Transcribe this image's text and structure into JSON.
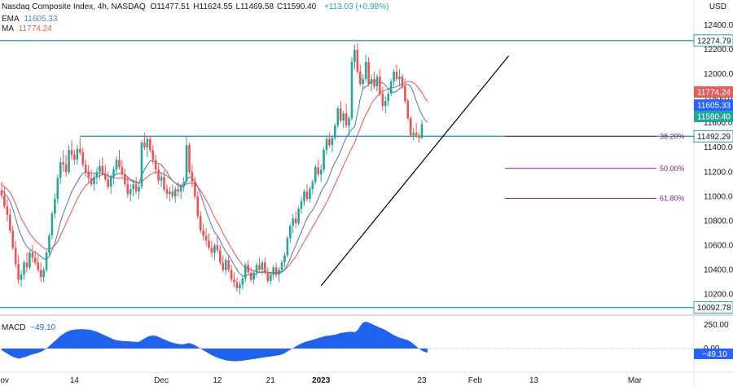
{
  "header": {
    "title": "Nasdaq Composite Index, 4h, NASDAQ",
    "ohlc": [
      {
        "k": "O",
        "v": "11477.51"
      },
      {
        "k": "H",
        "v": "11624.55"
      },
      {
        "k": "L",
        "v": "11469.58"
      },
      {
        "k": "C",
        "v": "11590.40"
      }
    ],
    "change": "+113.03 (+0.98%)",
    "ema_label": "EMA",
    "ema_value": "11605.33",
    "ma_label": "MA",
    "ma_value": "11774.24",
    "currency": "USD"
  },
  "macd": {
    "label": "MACD",
    "value": "−49.10",
    "axis_ticks": [
      "250.00",
      "0.00"
    ],
    "badge": "−49.10"
  },
  "colors": {
    "up": "#26a69a",
    "down": "#ef5350",
    "ema": "#5b7fb8",
    "ma": "#e06060",
    "level": "#2b9eaa",
    "fib": "#7b1f7b",
    "trend": "#000000",
    "macd": "#1f62f0"
  },
  "chart_data": {
    "type": "candlestick",
    "timeframe": "4h",
    "ylim": [
      10050,
      12420
    ],
    "y_ticks": [
      10200,
      10400,
      10600,
      10800,
      11000,
      11200,
      11400,
      11600,
      11800,
      12000,
      12200,
      12400
    ],
    "x_ticks": [
      {
        "i": 0,
        "label": "Nov"
      },
      {
        "i": 26,
        "label": "14"
      },
      {
        "i": 57,
        "label": "Dec"
      },
      {
        "i": 77,
        "label": "12"
      },
      {
        "i": 96,
        "label": "21"
      },
      {
        "i": 114,
        "label": "2023"
      },
      {
        "i": 150,
        "label": "23"
      },
      {
        "i": 169,
        "label": "Feb"
      },
      {
        "i": 190,
        "label": "13"
      },
      {
        "i": 226,
        "label": "Mar"
      }
    ],
    "candles": [
      [
        11050,
        11120,
        10980,
        11010
      ],
      [
        11010,
        11080,
        10900,
        10920
      ],
      [
        10920,
        10980,
        10800,
        10850
      ],
      [
        10850,
        10900,
        10700,
        10720
      ],
      [
        10720,
        10760,
        10560,
        10580
      ],
      [
        10580,
        10640,
        10420,
        10450
      ],
      [
        10450,
        10520,
        10280,
        10320
      ],
      [
        10320,
        10400,
        10260,
        10360
      ],
      [
        10360,
        10480,
        10320,
        10460
      ],
      [
        10460,
        10540,
        10380,
        10420
      ],
      [
        10420,
        10560,
        10400,
        10540
      ],
      [
        10540,
        10600,
        10460,
        10500
      ],
      [
        10500,
        10560,
        10440,
        10460
      ],
      [
        10460,
        10520,
        10380,
        10400
      ],
      [
        10400,
        10460,
        10300,
        10340
      ],
      [
        10340,
        10420,
        10300,
        10400
      ],
      [
        10400,
        10560,
        10380,
        10540
      ],
      [
        10540,
        10700,
        10520,
        10680
      ],
      [
        10680,
        10880,
        10650,
        10860
      ],
      [
        10860,
        11020,
        10820,
        10980
      ],
      [
        10980,
        11180,
        10940,
        11150
      ],
      [
        11150,
        11320,
        11100,
        11280
      ],
      [
        11280,
        11380,
        11200,
        11260
      ],
      [
        11260,
        11340,
        11160,
        11200
      ],
      [
        11200,
        11420,
        11180,
        11380
      ],
      [
        11380,
        11460,
        11300,
        11340
      ],
      [
        11340,
        11380,
        11260,
        11300
      ],
      [
        11300,
        11420,
        11260,
        11390
      ],
      [
        11390,
        11480,
        11340,
        11360
      ],
      [
        11360,
        11400,
        11240,
        11260
      ],
      [
        11260,
        11300,
        11160,
        11200
      ],
      [
        11200,
        11260,
        11120,
        11150
      ],
      [
        11150,
        11220,
        11080,
        11100
      ],
      [
        11100,
        11180,
        11050,
        11160
      ],
      [
        11160,
        11240,
        11100,
        11200
      ],
      [
        11200,
        11300,
        11140,
        11250
      ],
      [
        11250,
        11320,
        11170,
        11190
      ],
      [
        11190,
        11260,
        11120,
        11140
      ],
      [
        11140,
        11200,
        11060,
        11080
      ],
      [
        11080,
        11180,
        11020,
        11160
      ],
      [
        11160,
        11250,
        11100,
        11220
      ],
      [
        11220,
        11330,
        11180,
        11300
      ],
      [
        11300,
        11380,
        11220,
        11240
      ],
      [
        11240,
        11300,
        11160,
        11180
      ],
      [
        11180,
        11230,
        11080,
        11100
      ],
      [
        11100,
        11160,
        10990,
        11020
      ],
      [
        11020,
        11100,
        10960,
        11060
      ],
      [
        11060,
        11140,
        11000,
        11100
      ],
      [
        11100,
        11160,
        11020,
        11040
      ],
      [
        11040,
        11120,
        10980,
        11080
      ],
      [
        11080,
        11460,
        11060,
        11440
      ],
      [
        11440,
        11520,
        11380,
        11400
      ],
      [
        11400,
        11490,
        11320,
        11470
      ],
      [
        11470,
        11500,
        11360,
        11380
      ],
      [
        11380,
        11420,
        11260,
        11300
      ],
      [
        11300,
        11340,
        11180,
        11220
      ],
      [
        11220,
        11260,
        11100,
        11130
      ],
      [
        11130,
        11200,
        11080,
        11160
      ],
      [
        11160,
        11210,
        11040,
        11060
      ],
      [
        11060,
        11100,
        10980,
        11020
      ],
      [
        11020,
        11080,
        10960,
        11040
      ],
      [
        11040,
        11100,
        10980,
        11000
      ],
      [
        11000,
        11080,
        10950,
        11060
      ],
      [
        11060,
        11120,
        11000,
        11040
      ],
      [
        11040,
        11100,
        10980,
        11080
      ],
      [
        11080,
        11160,
        11040,
        11120
      ],
      [
        11120,
        11500,
        11100,
        11420
      ],
      [
        11420,
        11440,
        11180,
        11200
      ],
      [
        11200,
        11260,
        11080,
        11120
      ],
      [
        11120,
        11160,
        10980,
        11000
      ],
      [
        11000,
        11040,
        10820,
        10840
      ],
      [
        10840,
        10880,
        10700,
        10720
      ],
      [
        10720,
        10780,
        10640,
        10680
      ],
      [
        10680,
        10740,
        10600,
        10640
      ],
      [
        10640,
        10700,
        10560,
        10580
      ],
      [
        10580,
        10640,
        10500,
        10540
      ],
      [
        10540,
        10620,
        10480,
        10600
      ],
      [
        10600,
        10680,
        10540,
        10560
      ],
      [
        10560,
        10600,
        10440,
        10460
      ],
      [
        10460,
        10520,
        10380,
        10400
      ],
      [
        10400,
        10500,
        10360,
        10480
      ],
      [
        10480,
        10520,
        10380,
        10400
      ],
      [
        10400,
        10440,
        10300,
        10320
      ],
      [
        10320,
        10380,
        10260,
        10300
      ],
      [
        10300,
        10340,
        10220,
        10250
      ],
      [
        10250,
        10310,
        10200,
        10280
      ],
      [
        10280,
        10350,
        10240,
        10330
      ],
      [
        10330,
        10460,
        10300,
        10440
      ],
      [
        10440,
        10480,
        10360,
        10380
      ],
      [
        10380,
        10420,
        10300,
        10320
      ],
      [
        10320,
        10400,
        10280,
        10380
      ],
      [
        10380,
        10460,
        10340,
        10440
      ],
      [
        10440,
        10500,
        10380,
        10400
      ],
      [
        10400,
        10480,
        10360,
        10460
      ],
      [
        10460,
        10500,
        10360,
        10380
      ],
      [
        10380,
        10420,
        10290,
        10310
      ],
      [
        10310,
        10380,
        10280,
        10360
      ],
      [
        10360,
        10440,
        10320,
        10420
      ],
      [
        10420,
        10460,
        10340,
        10360
      ],
      [
        10360,
        10420,
        10300,
        10400
      ],
      [
        10400,
        10480,
        10380,
        10460
      ],
      [
        10460,
        10540,
        10420,
        10520
      ],
      [
        10520,
        10680,
        10500,
        10660
      ],
      [
        10660,
        10780,
        10620,
        10760
      ],
      [
        10760,
        10860,
        10700,
        10820
      ],
      [
        10820,
        10880,
        10740,
        10780
      ],
      [
        10780,
        10920,
        10760,
        10900
      ],
      [
        10900,
        11000,
        10860,
        10960
      ],
      [
        10960,
        11060,
        10920,
        11040
      ],
      [
        11040,
        11100,
        10960,
        10980
      ],
      [
        10980,
        11080,
        10950,
        11060
      ],
      [
        11060,
        11140,
        11020,
        11120
      ],
      [
        11120,
        11260,
        11100,
        11240
      ],
      [
        11240,
        11300,
        11160,
        11180
      ],
      [
        11180,
        11260,
        11120,
        11220
      ],
      [
        11220,
        11400,
        11200,
        11380
      ],
      [
        11380,
        11500,
        11340,
        11470
      ],
      [
        11470,
        11520,
        11400,
        11420
      ],
      [
        11420,
        11500,
        11360,
        11480
      ],
      [
        11480,
        11600,
        11460,
        11580
      ],
      [
        11580,
        11740,
        11560,
        11720
      ],
      [
        11720,
        11780,
        11600,
        11620
      ],
      [
        11620,
        11700,
        11560,
        11680
      ],
      [
        11680,
        11760,
        11560,
        11580
      ],
      [
        11580,
        11660,
        11500,
        11640
      ],
      [
        11640,
        12140,
        11620,
        12100
      ],
      [
        12100,
        12240,
        12040,
        12200
      ],
      [
        12200,
        12250,
        12000,
        12020
      ],
      [
        12020,
        12080,
        11900,
        11920
      ],
      [
        11920,
        12000,
        11880,
        11960
      ],
      [
        11960,
        12160,
        11940,
        12100
      ],
      [
        12100,
        12140,
        11900,
        11920
      ],
      [
        11920,
        12000,
        11860,
        11960
      ],
      [
        11960,
        12020,
        11880,
        11900
      ],
      [
        11900,
        12000,
        11860,
        11980
      ],
      [
        11980,
        12040,
        11820,
        11840
      ],
      [
        11840,
        11900,
        11700,
        11740
      ],
      [
        11740,
        11820,
        11680,
        11780
      ],
      [
        11780,
        11860,
        11740,
        11840
      ],
      [
        11840,
        11960,
        11820,
        11940
      ],
      [
        11940,
        12040,
        11900,
        12020
      ],
      [
        12020,
        12080,
        11940,
        11960
      ],
      [
        11960,
        12040,
        11900,
        11980
      ],
      [
        11980,
        12000,
        11880,
        11900
      ],
      [
        11900,
        11960,
        11760,
        11780
      ],
      [
        11780,
        11800,
        11620,
        11640
      ],
      [
        11640,
        11660,
        11480,
        11500
      ],
      [
        11500,
        11560,
        11460,
        11520
      ],
      [
        11520,
        11600,
        11480,
        11500
      ],
      [
        11500,
        11520,
        11440,
        11480
      ],
      [
        11477.51,
        11624.55,
        11469.58,
        11590.4
      ]
    ],
    "ema": [
      11050,
      11030,
      11000,
      10960,
      10900,
      10820,
      10740,
      10680,
      10630,
      10590,
      10570,
      10550,
      10540,
      10530,
      10510,
      10490,
      10490,
      10510,
      10560,
      10620,
      10700,
      10790,
      10860,
      10920,
      10980,
      11040,
      11080,
      11120,
      11160,
      11190,
      11200,
      11200,
      11190,
      11190,
      11190,
      11190,
      11190,
      11180,
      11170,
      11160,
      11170,
      11180,
      11190,
      11190,
      11180,
      11160,
      11140,
      11130,
      11120,
      11110,
      11170,
      11220,
      11260,
      11290,
      11290,
      11280,
      11270,
      11260,
      11230,
      11200,
      11160,
      11130,
      11110,
      11090,
      11080,
      11080,
      11140,
      11160,
      11150,
      11130,
      11080,
      11020,
      10950,
      10880,
      10820,
      10760,
      10710,
      10680,
      10640,
      10590,
      10550,
      10520,
      10480,
      10440,
      10400,
      10370,
      10350,
      10350,
      10360,
      10360,
      10360,
      10370,
      10380,
      10380,
      10390,
      10380,
      10370,
      10370,
      10370,
      10370,
      10380,
      10400,
      10440,
      10490,
      10550,
      10600,
      10660,
      10710,
      10770,
      10820,
      10860,
      10890,
      10930,
      10980,
      11040,
      11080,
      11110,
      11170,
      11230,
      11280,
      11320,
      11370,
      11430,
      11480,
      11520,
      11550,
      11570,
      11680,
      11800,
      11880,
      11900,
      11910,
      11950,
      11940,
      11940,
      11930,
      11930,
      11910,
      11880,
      11860,
      11850,
      11860,
      11880,
      11900,
      11910,
      11920,
      11900,
      11850,
      11780,
      11720,
      11670,
      11630,
      11605.33
    ],
    "ma": [
      11100,
      11080,
      11060,
      11030,
      10990,
      10940,
      10880,
      10820,
      10780,
      10740,
      10700,
      10670,
      10640,
      10620,
      10600,
      10580,
      10570,
      10570,
      10580,
      10600,
      10630,
      10680,
      10730,
      10780,
      10830,
      10880,
      10930,
      10980,
      11020,
      11060,
      11090,
      11110,
      11130,
      11150,
      11160,
      11170,
      11180,
      11180,
      11170,
      11160,
      11150,
      11150,
      11150,
      11150,
      11150,
      11140,
      11130,
      11120,
      11110,
      11110,
      11120,
      11140,
      11160,
      11180,
      11190,
      11200,
      11200,
      11190,
      11180,
      11170,
      11150,
      11130,
      11110,
      11100,
      11090,
      11090,
      11100,
      11110,
      11110,
      11100,
      11080,
      11050,
      11010,
      10970,
      10930,
      10880,
      10830,
      10790,
      10750,
      10700,
      10660,
      10620,
      10580,
      10540,
      10500,
      10470,
      10440,
      10420,
      10410,
      10400,
      10390,
      10390,
      10380,
      10380,
      10380,
      10380,
      10380,
      10380,
      10380,
      10380,
      10390,
      10400,
      10420,
      10450,
      10480,
      10510,
      10550,
      10590,
      10630,
      10670,
      10710,
      10750,
      10790,
      10830,
      10870,
      10910,
      10950,
      11000,
      11050,
      11100,
      11150,
      11200,
      11250,
      11300,
      11350,
      11400,
      11440,
      11500,
      11560,
      11620,
      11670,
      11710,
      11760,
      11790,
      11820,
      11840,
      11860,
      11870,
      11880,
      11890,
      11890,
      11900,
      11910,
      11920,
      11930,
      11940,
      11940,
      11930,
      11910,
      11880,
      11850,
      11810,
      11774.24
    ],
    "macd": [
      -20,
      -40,
      -60,
      -80,
      -100,
      -110,
      -120,
      -115,
      -105,
      -95,
      -80,
      -70,
      -60,
      -50,
      -40,
      -20,
      0,
      30,
      60,
      90,
      120,
      150,
      175,
      195,
      210,
      220,
      225,
      228,
      230,
      230,
      228,
      225,
      220,
      210,
      200,
      185,
      170,
      155,
      140,
      125,
      110,
      100,
      95,
      90,
      88,
      86,
      84,
      82,
      80,
      80,
      100,
      120,
      140,
      150,
      155,
      150,
      140,
      125,
      110,
      95,
      80,
      70,
      60,
      55,
      50,
      50,
      60,
      65,
      55,
      40,
      20,
      0,
      -20,
      -40,
      -60,
      -80,
      -95,
      -110,
      -120,
      -130,
      -140,
      -145,
      -148,
      -150,
      -150,
      -148,
      -145,
      -140,
      -135,
      -130,
      -125,
      -120,
      -115,
      -110,
      -105,
      -100,
      -95,
      -90,
      -85,
      -80,
      -70,
      -55,
      -35,
      -15,
      5,
      25,
      45,
      60,
      75,
      85,
      95,
      105,
      115,
      125,
      135,
      145,
      150,
      155,
      160,
      165,
      175,
      185,
      190,
      195,
      200,
      200,
      195,
      215,
      270,
      310,
      320,
      310,
      295,
      280,
      265,
      250,
      235,
      220,
      200,
      180,
      160,
      145,
      130,
      120,
      110,
      100,
      80,
      55,
      25,
      0,
      -25,
      -40,
      -49.1
    ],
    "levels": [
      {
        "name": "resistance",
        "value": 12274.79,
        "label": "12274.79"
      },
      {
        "name": "breakout",
        "value": 11492.29,
        "label": "11492.29"
      },
      {
        "name": "support",
        "value": 10092.78,
        "label": "10092.78"
      }
    ],
    "fib": [
      {
        "label": "38.20%",
        "value": 11492
      },
      {
        "label": "50.00%",
        "value": 11230
      },
      {
        "label": "61.80%",
        "value": 10985
      }
    ],
    "trendline": {
      "from": {
        "i": 114,
        "y": 10270
      },
      "to": {
        "i": 181,
        "y": 12150
      }
    },
    "price_badges": [
      {
        "name": "ma",
        "label": "11774.24",
        "value": 11774.24
      },
      {
        "name": "ema",
        "label": "11605.33",
        "value": 11605.33
      },
      {
        "name": "close",
        "label": "11590.40",
        "value": 11590.4
      }
    ]
  }
}
